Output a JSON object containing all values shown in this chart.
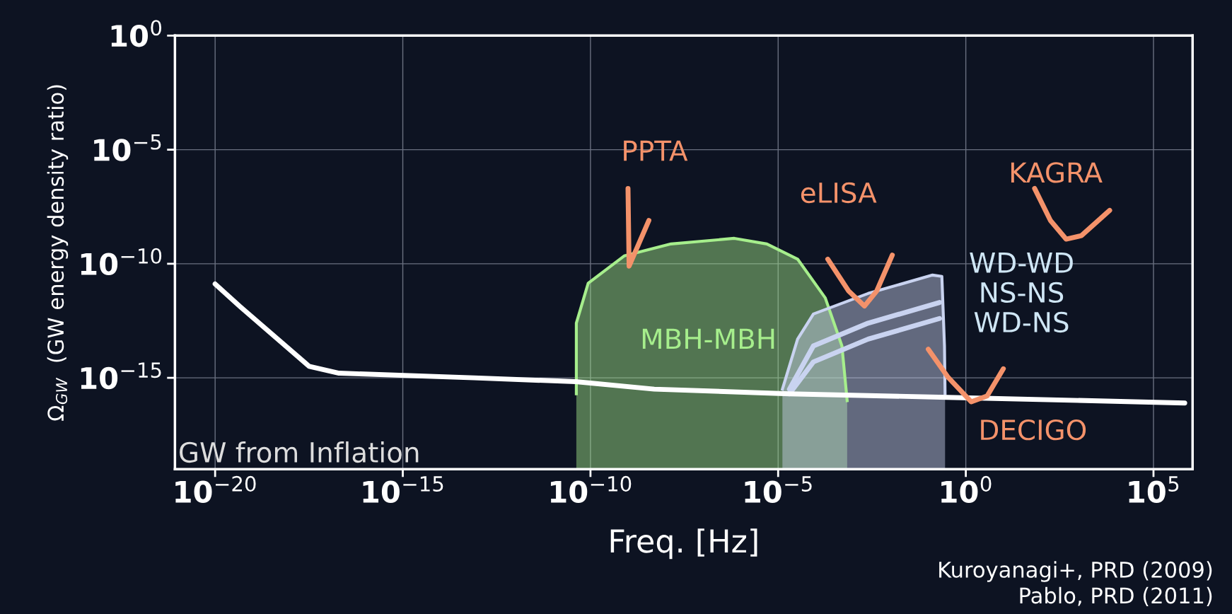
{
  "chart_data": {
    "type": "line",
    "xlabel": "Freq. [Hz]",
    "ylabel": "Ω$_{GW}$  (GW energy density ratio)",
    "log": "xy",
    "grid": true,
    "xlim": [
      8.5e-22,
      1100000.0
    ],
    "ylim": [
      1e-19,
      1
    ],
    "xticks": [
      {
        "value": 1e-20,
        "label": "10$^{−20}$"
      },
      {
        "value": 1e-15,
        "label": "10$^{−15}$"
      },
      {
        "value": 1e-10,
        "label": "10$^{−10}$"
      },
      {
        "value": 1e-05,
        "label": "10$^{−5}$"
      },
      {
        "value": 1,
        "label": "10$^{0}$"
      },
      {
        "value": 100000.0,
        "label": "10$^{5}$"
      }
    ],
    "yticks": [
      {
        "value": 1e-15,
        "label": "10$^{−15}$"
      },
      {
        "value": 1e-10,
        "label": "10$^{−10}$"
      },
      {
        "value": 1e-05,
        "label": "10$^{−5}$"
      },
      {
        "value": 1,
        "label": "10$^{0}$"
      }
    ],
    "series": [
      {
        "name": "MBH-MBH",
        "type": "area",
        "color": "#a6ee8c",
        "x": [
          4.2e-11,
          4.2e-11,
          8.7e-11,
          7.9e-10,
          1.4e-08,
          6.8e-07,
          5e-06,
          3.3e-05,
          0.00018,
          0.0005,
          0.00069
        ],
        "values": [
          2e-16,
          2.5e-13,
          1.4e-11,
          2.2e-10,
          7.4e-10,
          1.3e-09,
          7.4e-10,
          1.6e-10,
          3.2e-12,
          2.5e-14,
          1e-16
        ]
      },
      {
        "type": "area",
        "color": "#c9d3f0",
        "x": [
          1.3e-05,
          3.3e-05,
          8.7e-05,
          0.0025,
          0.13,
          0.23,
          0.27,
          0.28
        ],
        "values": [
          3.2e-16,
          5e-14,
          6.3e-13,
          5e-12,
          3.2e-11,
          2.8e-11,
          2.5e-14,
          2e-16
        ]
      },
      {
        "type": "line",
        "color": "#c9d3f0",
        "x": [
          2e-05,
          8.7e-05,
          0.0025,
          0.2
        ],
        "values": [
          3.2e-16,
          2.5e-14,
          2.5e-13,
          2e-12
        ]
      },
      {
        "type": "line",
        "color": "#c9d3f0",
        "x": [
          2e-05,
          8.7e-05,
          0.0025,
          0.2
        ],
        "values": [
          2e-16,
          5e-15,
          5e-14,
          4e-13
        ]
      },
      {
        "name": "GW from Inflation",
        "color": "#ffffff",
        "x": [
          1e-20,
          4.7e-20,
          3.2e-18,
          2e-17,
          7.9e-14,
          4e-11,
          5e-09,
          2e-05,
          0.32,
          680000.0
        ],
        "values": [
          1.3e-11,
          1.3e-12,
          3.2e-15,
          1.6e-15,
          1e-15,
          6.8e-16,
          3.2e-16,
          2e-16,
          1.4e-16,
          7.9e-17
        ]
      },
      {
        "name": "PPTA",
        "color": "#f4926a",
        "x": [
          1e-09,
          1.07e-09,
          3.6e-09
        ],
        "values": [
          2e-07,
          7.9e-11,
          7.9e-09
        ]
      },
      {
        "name": "eLISA",
        "color": "#f4926a",
        "x": [
          0.00021,
          0.00076,
          0.002,
          0.0042,
          0.011
        ],
        "values": [
          1.6e-10,
          6.3e-12,
          1.4e-12,
          6.3e-12,
          2.4e-10
        ]
      },
      {
        "name": "KAGRA",
        "color": "#f4926a",
        "x": [
          68,
          180,
          470,
          1200,
          6800
        ],
        "values": [
          2e-07,
          7.9e-09,
          1.2e-09,
          1.7e-09,
          2.2e-08
        ]
      },
      {
        "type": "line",
        "color": "#f4926a",
        "x": [
          0.1,
          0.33,
          1.4,
          3.7,
          10
        ],
        "values": [
          1.8e-14,
          1.1e-15,
          8.9e-17,
          1.6e-16,
          2.5e-15
        ]
      }
    ],
    "annotations": [
      "WD-WD\nNS-NS\nWD-NS",
      "DECIGO",
      "Kuroyanagi+, PRD (2009)\nPablo, PRD (2011)"
    ]
  }
}
